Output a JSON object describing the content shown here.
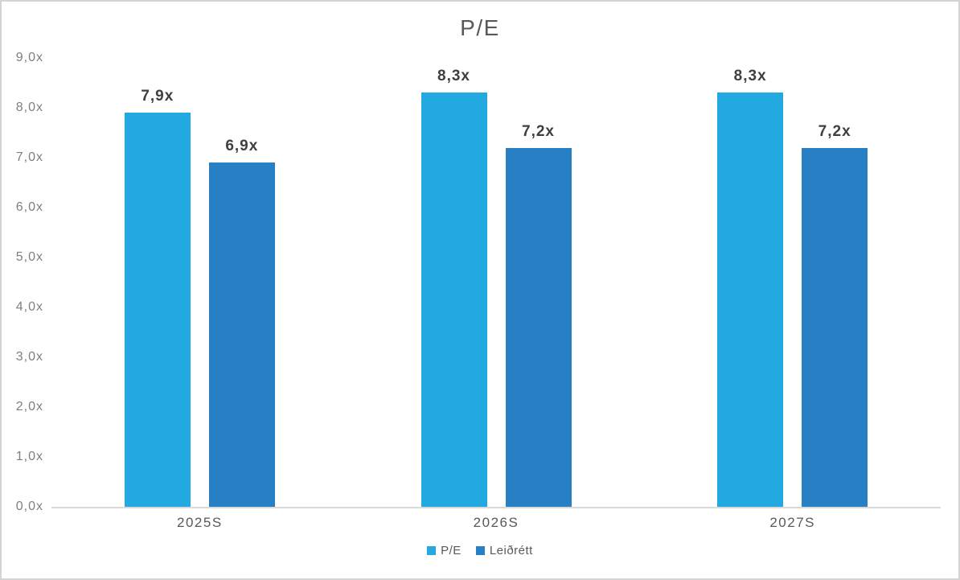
{
  "chart_data": {
    "type": "bar",
    "title": "P/E",
    "categories": [
      "2025S",
      "2026S",
      "2027S"
    ],
    "series": [
      {
        "name": "P/E",
        "color": "#22A9E1",
        "values": [
          7.9,
          8.3,
          8.3
        ],
        "data_labels": [
          "7,9x",
          "8,3x",
          "8,3x"
        ]
      },
      {
        "name": "Leiðrétt",
        "color": "#2880C4",
        "values": [
          6.9,
          7.2,
          7.2
        ],
        "data_labels": [
          "6,9x",
          "7,2x",
          "7,2x"
        ]
      }
    ],
    "y_axis": {
      "min": 0,
      "max": 9,
      "step": 1,
      "tick_labels": [
        "0,0x",
        "1,0x",
        "2,0x",
        "3,0x",
        "4,0x",
        "5,0x",
        "6,0x",
        "7,0x",
        "8,0x",
        "9,0x"
      ]
    },
    "xlabel": "",
    "ylabel": "",
    "legend": {
      "position": "bottom",
      "entries": [
        "P/E",
        "Leiðrétt"
      ]
    },
    "grid": false,
    "number_format": "decimal-comma-x-suffix"
  },
  "colors": {
    "series-pe": "#22A9E1",
    "series-leidrett": "#2880C4",
    "axis-line": "#D9D9D9",
    "tick-text": "#7F7F7F",
    "category-text": "#595959",
    "title-text": "#595959",
    "data-label-text": "#3F3F3F",
    "legend-text": "#595959",
    "chart-border": "#D4D4D4",
    "background": "#FFFFFF"
  }
}
